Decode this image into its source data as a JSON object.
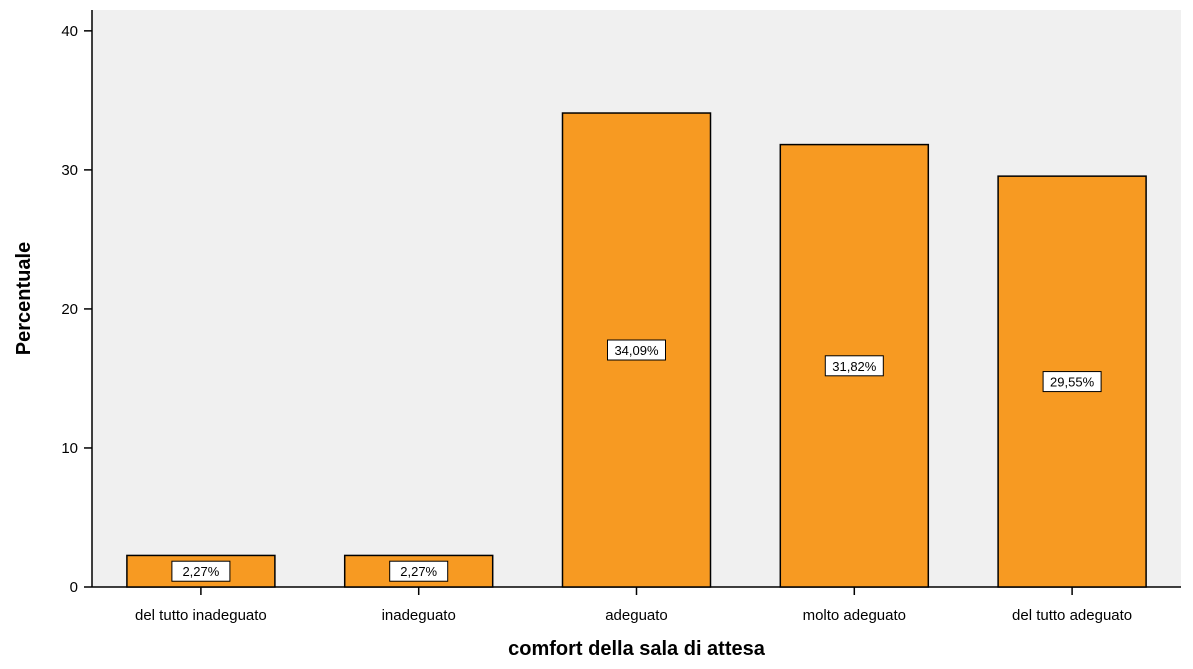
{
  "chart_data": {
    "type": "bar",
    "title": "",
    "xlabel": "comfort della sala di attesa",
    "ylabel": "Percentuale",
    "categories": [
      "del tutto inadeguato",
      "inadeguato",
      "adeguato",
      "molto adeguato",
      "del tutto adeguato"
    ],
    "values": [
      2.27,
      2.27,
      34.09,
      31.82,
      29.55
    ],
    "data_labels": [
      "2,27%",
      "2,27%",
      "34,09%",
      "31,82%",
      "29,55%"
    ],
    "yticks": [
      0,
      10,
      20,
      30,
      40
    ],
    "ylim": [
      0,
      41.5
    ],
    "grid": false,
    "legend": "none",
    "colors": {
      "bar_fill": "#F79A22",
      "bar_stroke": "#000000",
      "plot_background": "#F0F0F0",
      "label_box": "#FFFFFF"
    }
  }
}
